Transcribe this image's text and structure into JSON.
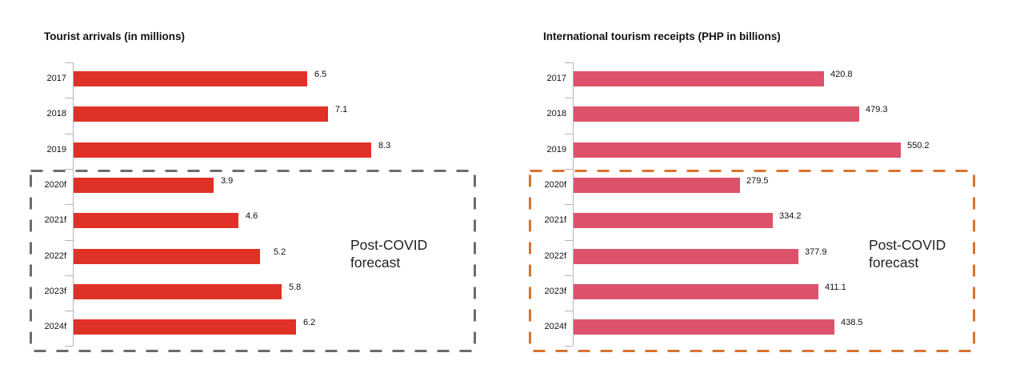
{
  "chart_data": [
    {
      "type": "bar",
      "orientation": "horizontal",
      "title": "Tourist arrivals (in millions)",
      "categories": [
        "2017",
        "2018",
        "2019",
        "2020f",
        "2021f",
        "2022f",
        "2023f",
        "2024f"
      ],
      "values": [
        6.5,
        7.1,
        8.3,
        3.9,
        4.6,
        5.2,
        5.8,
        6.2
      ],
      "value_labels": [
        "6.5",
        "7.1",
        "8.3",
        "3.9",
        "4.6",
        "5.2",
        "5.8",
        "6.2"
      ],
      "xlabel": "",
      "ylabel": "",
      "xlim": [
        0,
        9
      ],
      "grid": false,
      "bar_color": "#e03126",
      "annotation": {
        "text_line1": "Post-COVID",
        "text_line2": "forecast",
        "box_color": "#6b6b6b",
        "box_covers": [
          "2020f",
          "2021f",
          "2022f",
          "2023f",
          "2024f"
        ]
      }
    },
    {
      "type": "bar",
      "orientation": "horizontal",
      "title": "International tourism receipts (PHP in billions)",
      "categories": [
        "2017",
        "2018",
        "2019",
        "2020f",
        "2021f",
        "2022f",
        "2023f",
        "2024f"
      ],
      "values": [
        420.8,
        479.3,
        550.2,
        279.5,
        334.2,
        377.9,
        411.1,
        438.5
      ],
      "value_labels": [
        "420.8",
        "479.3",
        "550.2",
        "279.5",
        "334.2",
        "377.9",
        "411.1",
        "438.5"
      ],
      "xlabel": "",
      "ylabel": "",
      "xlim": [
        0,
        600
      ],
      "grid": false,
      "bar_color": "#dc526b",
      "annotation": {
        "text_line1": "Post-COVID",
        "text_line2": "forecast",
        "box_color": "#d9722f",
        "box_covers": [
          "2020f",
          "2021f",
          "2022f",
          "2023f",
          "2024f"
        ]
      }
    }
  ],
  "left": {
    "title": "Tourist arrivals (in millions)",
    "note_line1": "Post-COVID",
    "note_line2": "forecast"
  },
  "right": {
    "title": "International tourism receipts (PHP in billions)",
    "note_line1": "Post-COVID",
    "note_line2": "forecast"
  }
}
